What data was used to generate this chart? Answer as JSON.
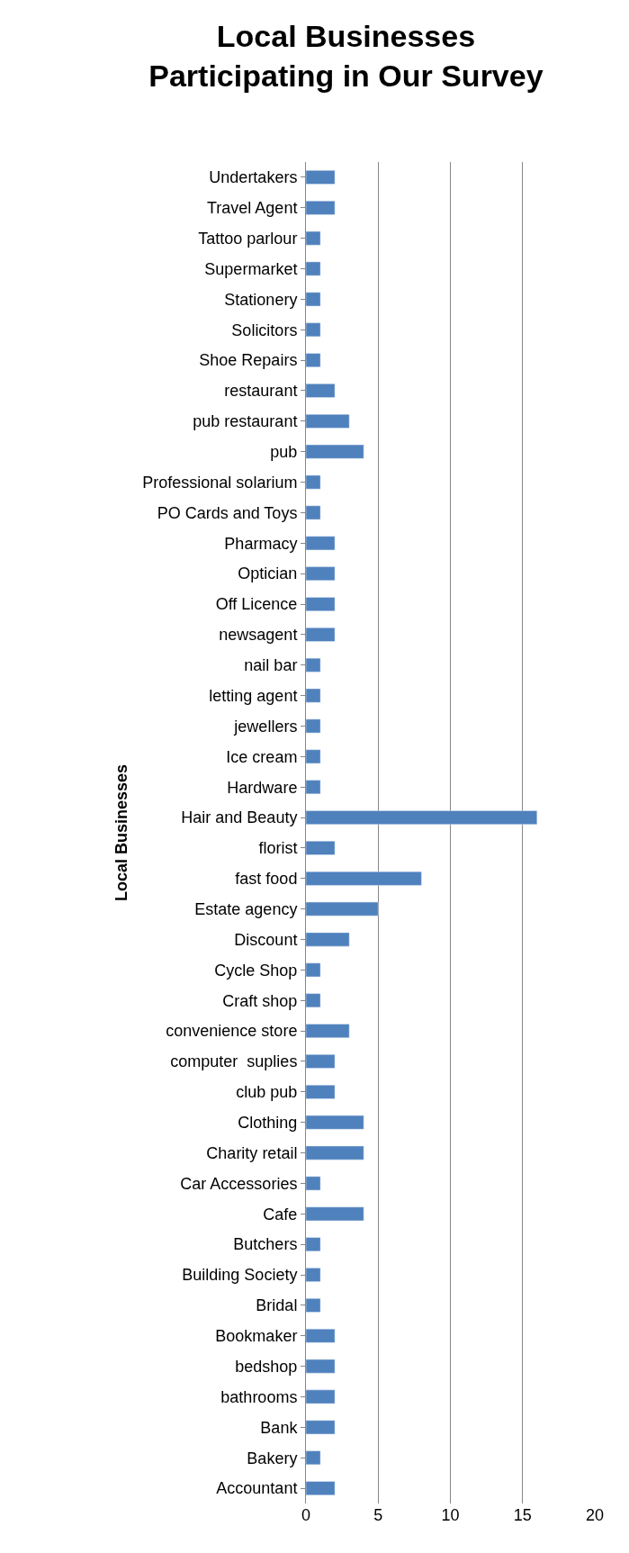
{
  "chart_data": {
    "type": "bar",
    "orientation": "horizontal",
    "title": "Local Businesses\nParticipating in Our Survey",
    "ylabel": "Local Businesses",
    "categories": [
      "Undertakers",
      "Travel Agent",
      "Tattoo parlour",
      "Supermarket",
      "Stationery",
      "Solicitors",
      "Shoe Repairs",
      "restaurant",
      "pub restaurant",
      "pub",
      "Professional solarium",
      "PO Cards and Toys",
      "Pharmacy",
      "Optician",
      "Off Licence",
      "newsagent",
      "nail bar",
      "letting agent",
      "jewellers",
      "Ice cream",
      "Hardware",
      "Hair and Beauty",
      "florist",
      "fast food",
      "Estate agency",
      "Discount",
      "Cycle Shop",
      "Craft shop",
      "convenience store",
      "computer  suplies",
      "club pub",
      "Clothing",
      "Charity retail",
      "Car Accessories",
      "Cafe",
      "Butchers",
      "Building Society",
      "Bridal",
      "Bookmaker",
      "bedshop",
      "bathrooms",
      "Bank",
      "Bakery",
      "Accountant"
    ],
    "values": [
      2,
      2,
      1,
      1,
      1,
      1,
      1,
      2,
      3,
      4,
      1,
      1,
      2,
      2,
      2,
      2,
      1,
      1,
      1,
      1,
      1,
      16,
      2,
      8,
      5,
      3,
      1,
      1,
      3,
      2,
      2,
      4,
      4,
      1,
      4,
      1,
      1,
      1,
      2,
      2,
      2,
      2,
      1,
      2
    ],
    "color": "#4f81bd",
    "xlim": [
      0,
      20
    ],
    "xticks": [
      0,
      5,
      10,
      15,
      20
    ],
    "grid": "x",
    "legend": false
  }
}
